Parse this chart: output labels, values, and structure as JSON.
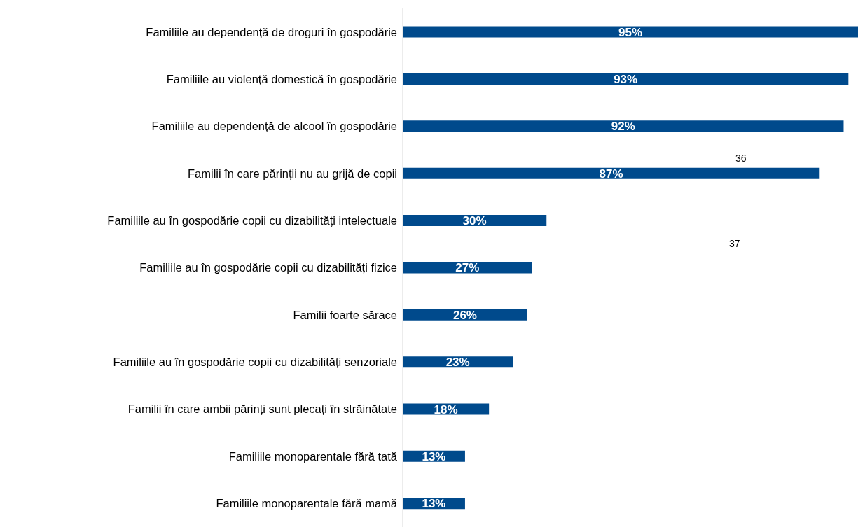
{
  "chart_data": {
    "type": "bar",
    "orientation": "horizontal",
    "categories": [
      "Familiile au dependență de droguri în gospodărie",
      "Familiile au violență domestică în gospodărie",
      "Familiile au dependență de alcool în gospodărie",
      "Familii în care părinții nu au grijă de copii",
      "Familiile au în gospodărie copii cu dizabilități intelectuale",
      "Familiile au în gospodărie copii cu dizabilități fizice",
      "Familii foarte sărace",
      "Familiile au în gospodărie copii cu dizabilități senzoriale",
      "Familii în care ambii părinți sunt plecați în străinătate",
      "Familiile monoparentale fără tată",
      "Familiile monoparentale fără mamă"
    ],
    "values": [
      95,
      93,
      92,
      87,
      30,
      27,
      26,
      23,
      18,
      13,
      13
    ],
    "value_labels": [
      "95%",
      "93%",
      "92%",
      "87%",
      "30%",
      "27%",
      "26%",
      "23%",
      "18%",
      "13%",
      "13%"
    ],
    "color": "#004a8c",
    "annotations": [
      "36",
      "37"
    ]
  }
}
